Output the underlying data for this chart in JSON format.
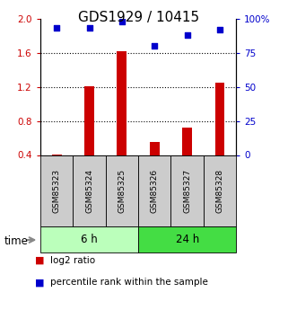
{
  "title": "GDS1929 / 10415",
  "samples": [
    "GSM85323",
    "GSM85324",
    "GSM85325",
    "GSM85326",
    "GSM85327",
    "GSM85328"
  ],
  "log2_ratio": [
    0.405,
    1.21,
    1.62,
    0.55,
    0.72,
    1.25
  ],
  "percentile_rank": [
    93,
    93,
    98,
    80,
    88,
    92
  ],
  "groups": [
    {
      "label": "6 h",
      "indices": [
        0,
        1,
        2
      ],
      "color": "#bbffbb"
    },
    {
      "label": "24 h",
      "indices": [
        3,
        4,
        5
      ],
      "color": "#44dd44"
    }
  ],
  "ylim_left": [
    0.4,
    2.0
  ],
  "ylim_right": [
    0,
    100
  ],
  "yticks_left": [
    0.4,
    0.8,
    1.2,
    1.6,
    2.0
  ],
  "yticks_right": [
    0,
    25,
    50,
    75,
    100
  ],
  "yticklabels_right": [
    "0",
    "25",
    "50",
    "75",
    "100%"
  ],
  "bar_color": "#cc0000",
  "dot_color": "#0000cc",
  "bar_baseline": 0.4,
  "bar_width": 0.3,
  "sample_box_color": "#cccccc",
  "legend_items": [
    {
      "label": "log2 ratio",
      "color": "#cc0000"
    },
    {
      "label": "percentile rank within the sample",
      "color": "#0000cc"
    }
  ],
  "time_label": "time",
  "title_fontsize": 11
}
